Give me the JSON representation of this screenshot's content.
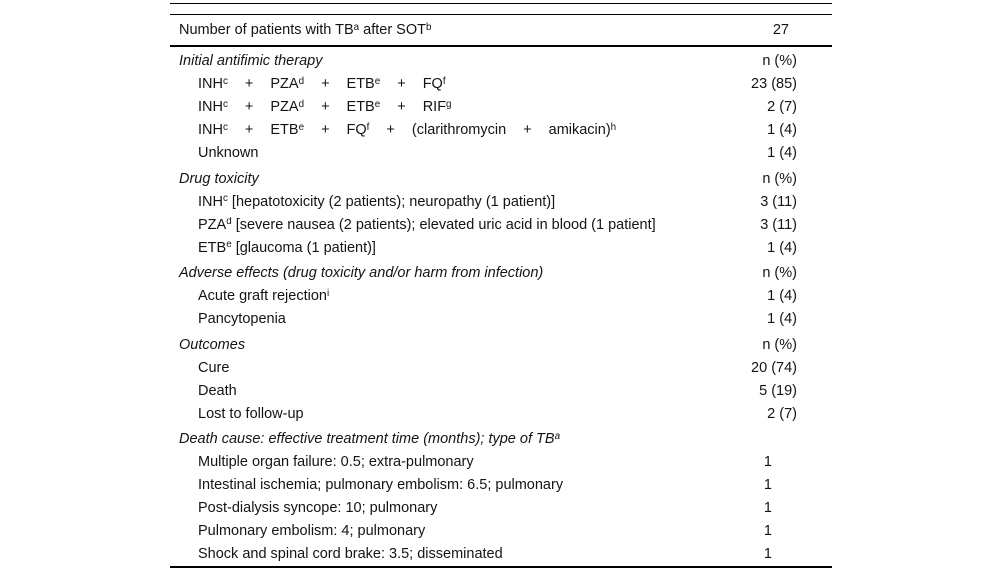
{
  "colors": {
    "background": "#ffffff",
    "text": "#141414",
    "rule": "#000000"
  },
  "table": {
    "header_row": {
      "label": "Number of patients with TB^a^ after SOT^b^",
      "value": "27"
    },
    "rows": [
      {
        "style": "section",
        "label": "Initial antifimic therapy",
        "value": "n (%)"
      },
      {
        "style": "item",
        "tokens": [
          "INH^c^",
          "+",
          "PZA^d^",
          "+",
          "ETB^e^",
          "+",
          "FQ^f^"
        ],
        "value": "23 (85)"
      },
      {
        "style": "item",
        "tokens": [
          "INH^c^",
          "+",
          "PZA^d^",
          "+",
          "ETB^e^",
          "+",
          "RIF^g^"
        ],
        "value": "2 (7)"
      },
      {
        "style": "item",
        "tokens": [
          "INH^c^",
          "+",
          "ETB^e^",
          "+",
          "FQ^f^",
          "+",
          "(clarithromycin",
          "+",
          "amikacin)^h^"
        ],
        "value": "1 (4)"
      },
      {
        "style": "item",
        "label": "Unknown",
        "value": "1 (4)"
      },
      {
        "style": "section",
        "label": "Drug toxicity",
        "value": "n (%)"
      },
      {
        "style": "item",
        "label": "INH^c^ [hepatotoxicity (2 patients); neuropathy (1 patient)]",
        "value": "3 (11)"
      },
      {
        "style": "item",
        "label": "PZA^d^ [severe nausea (2 patients); elevated uric acid in blood (1 patient]",
        "value": "3 (11)"
      },
      {
        "style": "item",
        "label": "ETB^e^ [glaucoma (1 patient)]",
        "value": "1 (4)"
      },
      {
        "style": "section",
        "label": "Adverse effects (drug toxicity and/or harm from infection)",
        "value": "n (%)"
      },
      {
        "style": "item",
        "label": "Acute graft rejection^i^",
        "value": "1 (4)"
      },
      {
        "style": "item",
        "label": "Pancytopenia",
        "value": "1 (4)"
      },
      {
        "style": "section",
        "label": "Outcomes",
        "value": "n (%)"
      },
      {
        "style": "item",
        "label": "Cure",
        "value": "20 (74)"
      },
      {
        "style": "item",
        "label": "Death",
        "value": "5 (19)"
      },
      {
        "style": "item",
        "label": "Lost to follow-up",
        "value": "2 (7)"
      },
      {
        "style": "section",
        "label": "Death cause: effective treatment time (months); type of TB^a^",
        "value": ""
      },
      {
        "style": "item",
        "label": "Multiple organ failure: 0.5; extra-pulmonary",
        "value": "1"
      },
      {
        "style": "item",
        "label": "Intestinal ischemia; pulmonary embolism: 6.5; pulmonary",
        "value": "1"
      },
      {
        "style": "item",
        "label": "Post-dialysis syncope: 10; pulmonary",
        "value": "1"
      },
      {
        "style": "item",
        "label": "Pulmonary embolism: 4; pulmonary",
        "value": "1"
      },
      {
        "style": "item",
        "label": "Shock and spinal cord brake: 3.5; disseminated",
        "value": "1"
      }
    ]
  }
}
